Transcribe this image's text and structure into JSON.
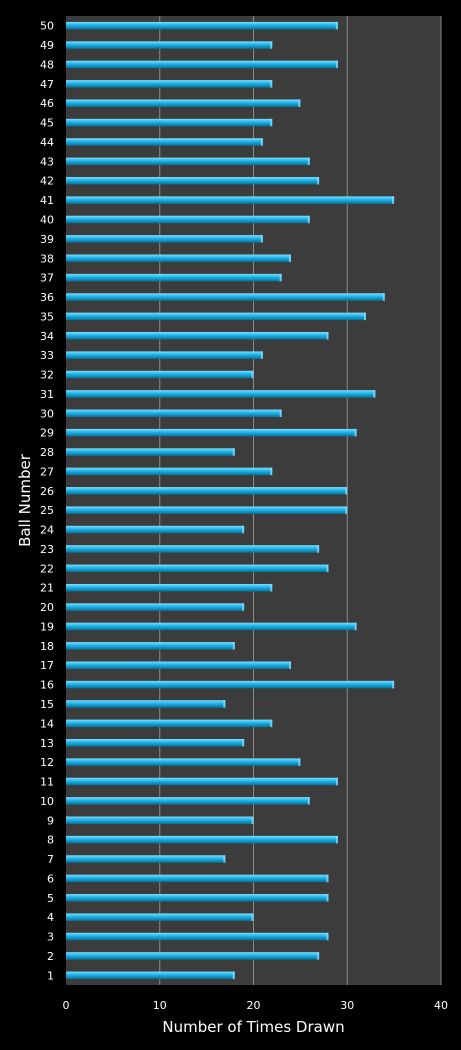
{
  "chart_data": {
    "type": "bar",
    "orientation": "horizontal",
    "title": "",
    "xlabel": "Number of Times Drawn",
    "ylabel": "Ball Number",
    "xlim": [
      0,
      40
    ],
    "x_ticks": [
      0,
      10,
      20,
      30,
      40
    ],
    "grid": true,
    "legend": "none",
    "colors": {
      "background": "#000000",
      "plot_area": "#3c3c3c",
      "bar": "#1ab4e8",
      "bar_highlight": "#7fdcff",
      "bar_shadow": "#0a6e96",
      "gridline": "#8a8a8a",
      "text": "#ffffff"
    },
    "categories": [
      "1",
      "2",
      "3",
      "4",
      "5",
      "6",
      "7",
      "8",
      "9",
      "10",
      "11",
      "12",
      "13",
      "14",
      "15",
      "16",
      "17",
      "18",
      "19",
      "20",
      "21",
      "22",
      "23",
      "24",
      "25",
      "26",
      "27",
      "28",
      "29",
      "30",
      "31",
      "32",
      "33",
      "34",
      "35",
      "36",
      "37",
      "38",
      "39",
      "40",
      "41",
      "42",
      "43",
      "44",
      "45",
      "46",
      "47",
      "48",
      "49",
      "50"
    ],
    "values": [
      18,
      27,
      28,
      20,
      28,
      28,
      17,
      29,
      20,
      26,
      29,
      25,
      19,
      22,
      17,
      35,
      24,
      18,
      31,
      19,
      22,
      28,
      27,
      19,
      30,
      30,
      22,
      18,
      31,
      23,
      33,
      20,
      21,
      28,
      32,
      34,
      23,
      24,
      21,
      26,
      35,
      27,
      26,
      21,
      22,
      25,
      22,
      29,
      22,
      29
    ]
  }
}
